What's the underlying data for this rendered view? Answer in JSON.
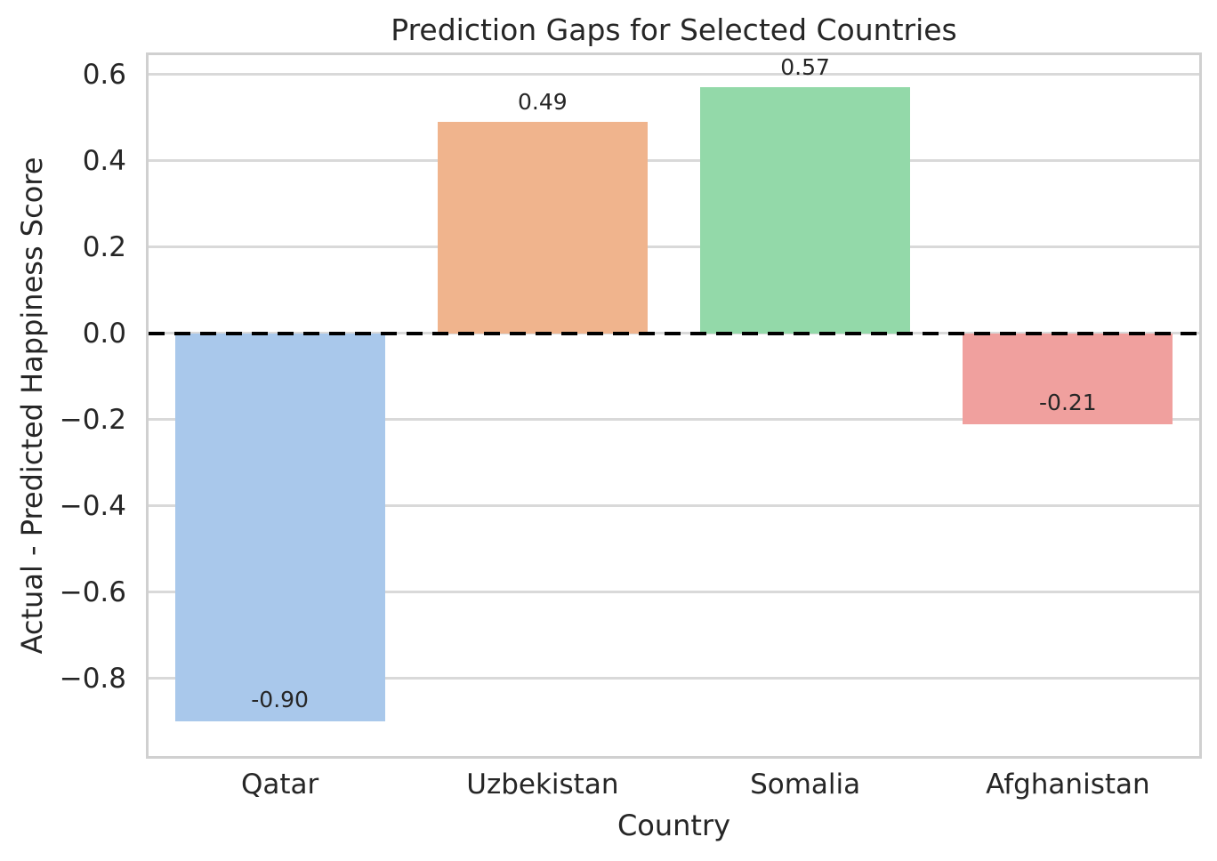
{
  "figure": {
    "background": "#ffffff"
  },
  "chart_data": {
    "type": "bar",
    "title": "Prediction Gaps for Selected Countries",
    "xlabel": "Country",
    "ylabel": "Actual - Predicted Happiness Score",
    "categories": [
      "Qatar",
      "Uzbekistan",
      "Somalia",
      "Afghanistan"
    ],
    "values": [
      -0.9,
      0.49,
      0.57,
      -0.21
    ],
    "bar_labels": [
      "-0.90",
      "0.49",
      "0.57",
      "-0.21"
    ],
    "bar_colors": [
      "#a9c8eb",
      "#f0b48d",
      "#93d9a9",
      "#f0a09e"
    ],
    "y_ticks": [
      0.6,
      0.4,
      0.2,
      0.0,
      -0.2,
      -0.4,
      -0.6,
      -0.8
    ],
    "y_tick_labels": [
      "0.6",
      "0.4",
      "0.2",
      "0.0",
      "−0.2",
      "−0.4",
      "−0.6",
      "−0.8"
    ],
    "ylim": [
      -0.98,
      0.645
    ],
    "grid": true,
    "legend_position": "none",
    "zero_line": {
      "style": "dashed",
      "color": "#000000",
      "linewidth": 4
    },
    "styles": {
      "grid_color": "#d9d9d9",
      "spine_color": "#d0d0d0",
      "text_color": "#262626",
      "bar_width_fraction": 0.8
    }
  }
}
